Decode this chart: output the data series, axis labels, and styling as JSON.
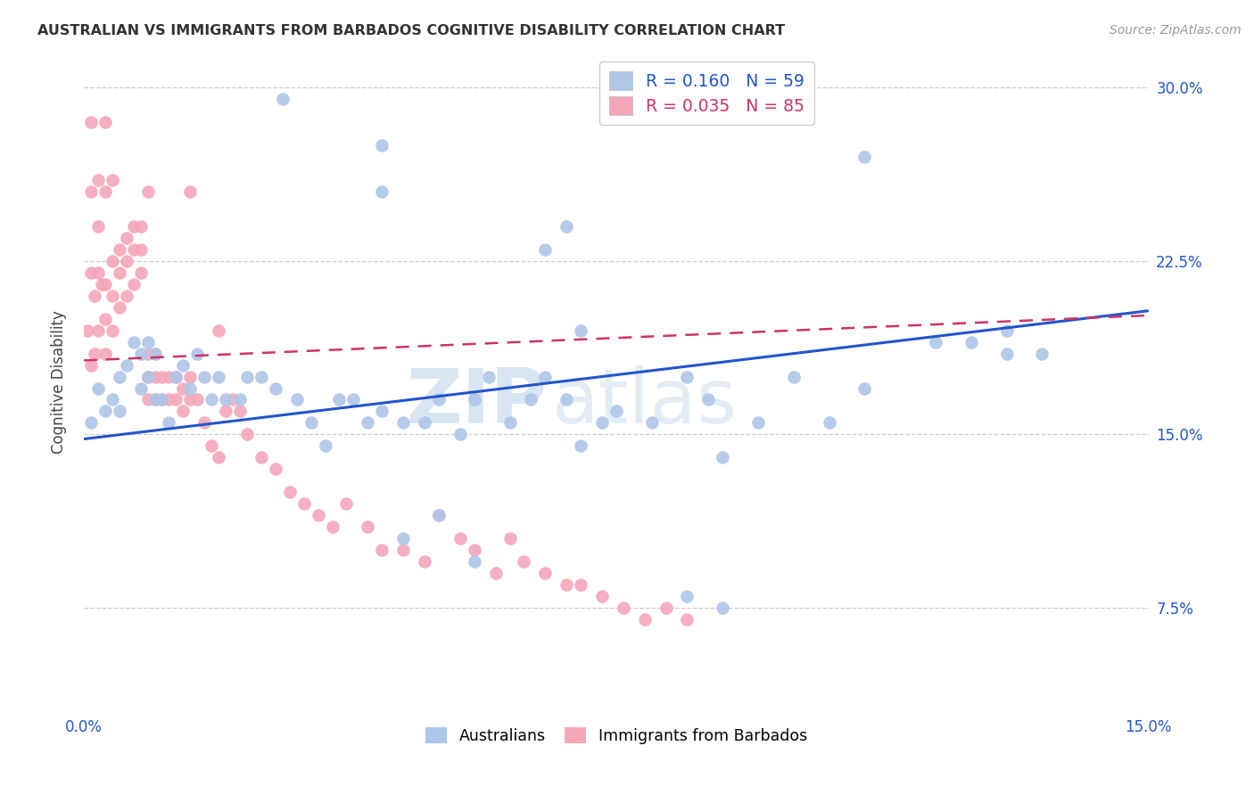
{
  "title": "AUSTRALIAN VS IMMIGRANTS FROM BARBADOS COGNITIVE DISABILITY CORRELATION CHART",
  "source": "Source: ZipAtlas.com",
  "ylabel": "Cognitive Disability",
  "yticks": [
    "7.5%",
    "15.0%",
    "22.5%",
    "30.0%"
  ],
  "ytick_vals": [
    0.075,
    0.15,
    0.225,
    0.3
  ],
  "xmin": 0.0,
  "xmax": 0.15,
  "ymin": 0.03,
  "ymax": 0.315,
  "legend1_label": "R = 0.160   N = 59",
  "legend2_label": "R = 0.035   N = 85",
  "blue_color": "#aec6e8",
  "pink_color": "#f4a7b9",
  "blue_line_color": "#2255cc",
  "pink_line_color": "#cc3366",
  "axis_label_color": "#2255cc",
  "watermark_zip": "ZIP",
  "watermark_atlas": "atlas",
  "blue_intercept": 0.148,
  "blue_slope": 0.37,
  "pink_intercept": 0.182,
  "pink_slope": 0.13,
  "blue_x": [
    0.001,
    0.002,
    0.003,
    0.004,
    0.005,
    0.005,
    0.006,
    0.007,
    0.008,
    0.008,
    0.009,
    0.009,
    0.01,
    0.01,
    0.011,
    0.012,
    0.013,
    0.014,
    0.015,
    0.016,
    0.017,
    0.018,
    0.019,
    0.02,
    0.022,
    0.023,
    0.025,
    0.027,
    0.03,
    0.032,
    0.034,
    0.036,
    0.038,
    0.04,
    0.042,
    0.045,
    0.048,
    0.05,
    0.053,
    0.055,
    0.057,
    0.06,
    0.063,
    0.065,
    0.068,
    0.07,
    0.073,
    0.075,
    0.08,
    0.085,
    0.088,
    0.09,
    0.095,
    0.1,
    0.105,
    0.11,
    0.12,
    0.125,
    0.13
  ],
  "blue_y": [
    0.155,
    0.17,
    0.16,
    0.165,
    0.175,
    0.16,
    0.18,
    0.19,
    0.185,
    0.17,
    0.175,
    0.19,
    0.165,
    0.185,
    0.165,
    0.155,
    0.175,
    0.18,
    0.17,
    0.185,
    0.175,
    0.165,
    0.175,
    0.165,
    0.165,
    0.175,
    0.175,
    0.17,
    0.165,
    0.155,
    0.145,
    0.165,
    0.165,
    0.155,
    0.16,
    0.155,
    0.155,
    0.165,
    0.15,
    0.165,
    0.175,
    0.155,
    0.165,
    0.175,
    0.165,
    0.145,
    0.155,
    0.16,
    0.155,
    0.175,
    0.165,
    0.14,
    0.155,
    0.175,
    0.155,
    0.17,
    0.19,
    0.19,
    0.185
  ],
  "blue_outliers_x": [
    0.028,
    0.042,
    0.042,
    0.065,
    0.068,
    0.07,
    0.11,
    0.13,
    0.135,
    0.045,
    0.05,
    0.055,
    0.085,
    0.09
  ],
  "blue_outliers_y": [
    0.295,
    0.275,
    0.255,
    0.23,
    0.24,
    0.195,
    0.27,
    0.195,
    0.185,
    0.105,
    0.115,
    0.095,
    0.08,
    0.075
  ],
  "pink_x": [
    0.0005,
    0.001,
    0.001,
    0.0015,
    0.0015,
    0.002,
    0.002,
    0.0025,
    0.003,
    0.003,
    0.003,
    0.004,
    0.004,
    0.004,
    0.005,
    0.005,
    0.005,
    0.006,
    0.006,
    0.006,
    0.007,
    0.007,
    0.007,
    0.008,
    0.008,
    0.008,
    0.009,
    0.009,
    0.009,
    0.01,
    0.01,
    0.01,
    0.011,
    0.011,
    0.012,
    0.012,
    0.013,
    0.013,
    0.014,
    0.014,
    0.015,
    0.015,
    0.016,
    0.017,
    0.018,
    0.019,
    0.02,
    0.021,
    0.022,
    0.023,
    0.025,
    0.027,
    0.029,
    0.031,
    0.033,
    0.035,
    0.037,
    0.04,
    0.042,
    0.045,
    0.048,
    0.05,
    0.053,
    0.055,
    0.058,
    0.06,
    0.062,
    0.065,
    0.068,
    0.07,
    0.073,
    0.076,
    0.079,
    0.082,
    0.085
  ],
  "pink_y": [
    0.195,
    0.22,
    0.18,
    0.21,
    0.185,
    0.22,
    0.195,
    0.215,
    0.215,
    0.2,
    0.185,
    0.225,
    0.21,
    0.195,
    0.23,
    0.22,
    0.205,
    0.235,
    0.225,
    0.21,
    0.24,
    0.23,
    0.215,
    0.24,
    0.23,
    0.22,
    0.185,
    0.175,
    0.165,
    0.185,
    0.175,
    0.165,
    0.175,
    0.165,
    0.175,
    0.165,
    0.175,
    0.165,
    0.17,
    0.16,
    0.175,
    0.165,
    0.165,
    0.155,
    0.145,
    0.14,
    0.16,
    0.165,
    0.16,
    0.15,
    0.14,
    0.135,
    0.125,
    0.12,
    0.115,
    0.11,
    0.12,
    0.11,
    0.1,
    0.1,
    0.095,
    0.115,
    0.105,
    0.1,
    0.09,
    0.105,
    0.095,
    0.09,
    0.085,
    0.085,
    0.08,
    0.075,
    0.07,
    0.075,
    0.07
  ],
  "pink_outliers_x": [
    0.003,
    0.009,
    0.015,
    0.019,
    0.001,
    0.001,
    0.002,
    0.002,
    0.003,
    0.004
  ],
  "pink_outliers_y": [
    0.285,
    0.255,
    0.255,
    0.195,
    0.285,
    0.255,
    0.26,
    0.24,
    0.255,
    0.26
  ]
}
